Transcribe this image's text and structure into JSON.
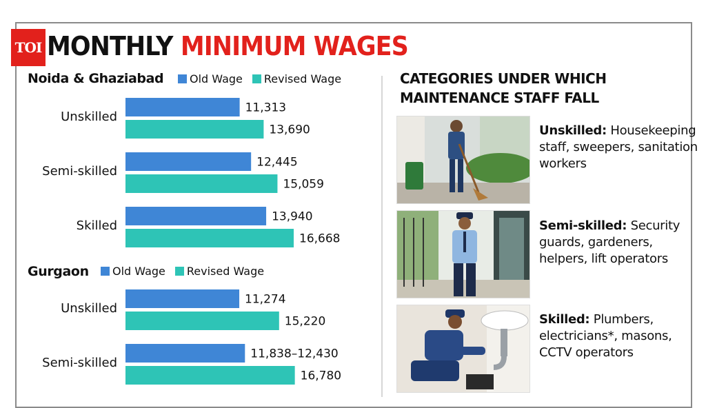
{
  "logo": {
    "text": "TOI"
  },
  "title": {
    "part1": "MONTHLY",
    "part2": "MINIMUM WAGES"
  },
  "colors": {
    "old_wage": "#3f86d6",
    "revised_wage": "#2ec4b6",
    "accent": "#e2211c"
  },
  "legend": {
    "old_label": "Old Wage",
    "revised_label": "Revised Wage"
  },
  "chart_data": [
    {
      "type": "bar",
      "orientation": "horizontal",
      "title": "Noida & Ghaziabad",
      "categories": [
        "Unskilled",
        "Semi-skilled",
        "Skilled"
      ],
      "series": [
        {
          "name": "Old Wage",
          "values": [
            11313,
            12445,
            13940
          ],
          "labels": [
            "11,313",
            "12,445",
            "13,940"
          ]
        },
        {
          "name": "Revised Wage",
          "values": [
            13690,
            15059,
            16668
          ],
          "labels": [
            "13,690",
            "15,059",
            "16,668"
          ]
        }
      ],
      "legend_position": "top"
    },
    {
      "type": "bar",
      "orientation": "horizontal",
      "title": "Gurgaon",
      "categories": [
        "Unskilled",
        "Semi-skilled"
      ],
      "series": [
        {
          "name": "Old Wage",
          "values": [
            11274,
            11838
          ],
          "value_ranges": [
            null,
            [
              11838,
              12430
            ]
          ],
          "labels": [
            "11,274",
            "11,838–12,430"
          ]
        },
        {
          "name": "Revised Wage",
          "values": [
            15220,
            16780
          ],
          "labels": [
            "15,220",
            "16,780"
          ]
        }
      ],
      "legend_position": "top"
    }
  ],
  "categories_panel": {
    "heading_line1": "CATEGORIES UNDER WHICH",
    "heading_line2": "MAINTENANCE STAFF FALL",
    "items": [
      {
        "label": "Unskilled:",
        "text": "Housekeeping staff, sweepers, sanitation workers",
        "photo": "sweeper-photo"
      },
      {
        "label": "Semi-skilled:",
        "text": "Security guards, gardeners, helpers, lift operators",
        "photo": "security-guard-photo"
      },
      {
        "label": "Skilled:",
        "text": "Plumbers, electricians*, masons, CCTV operators",
        "photo": "plumber-photo"
      }
    ]
  }
}
